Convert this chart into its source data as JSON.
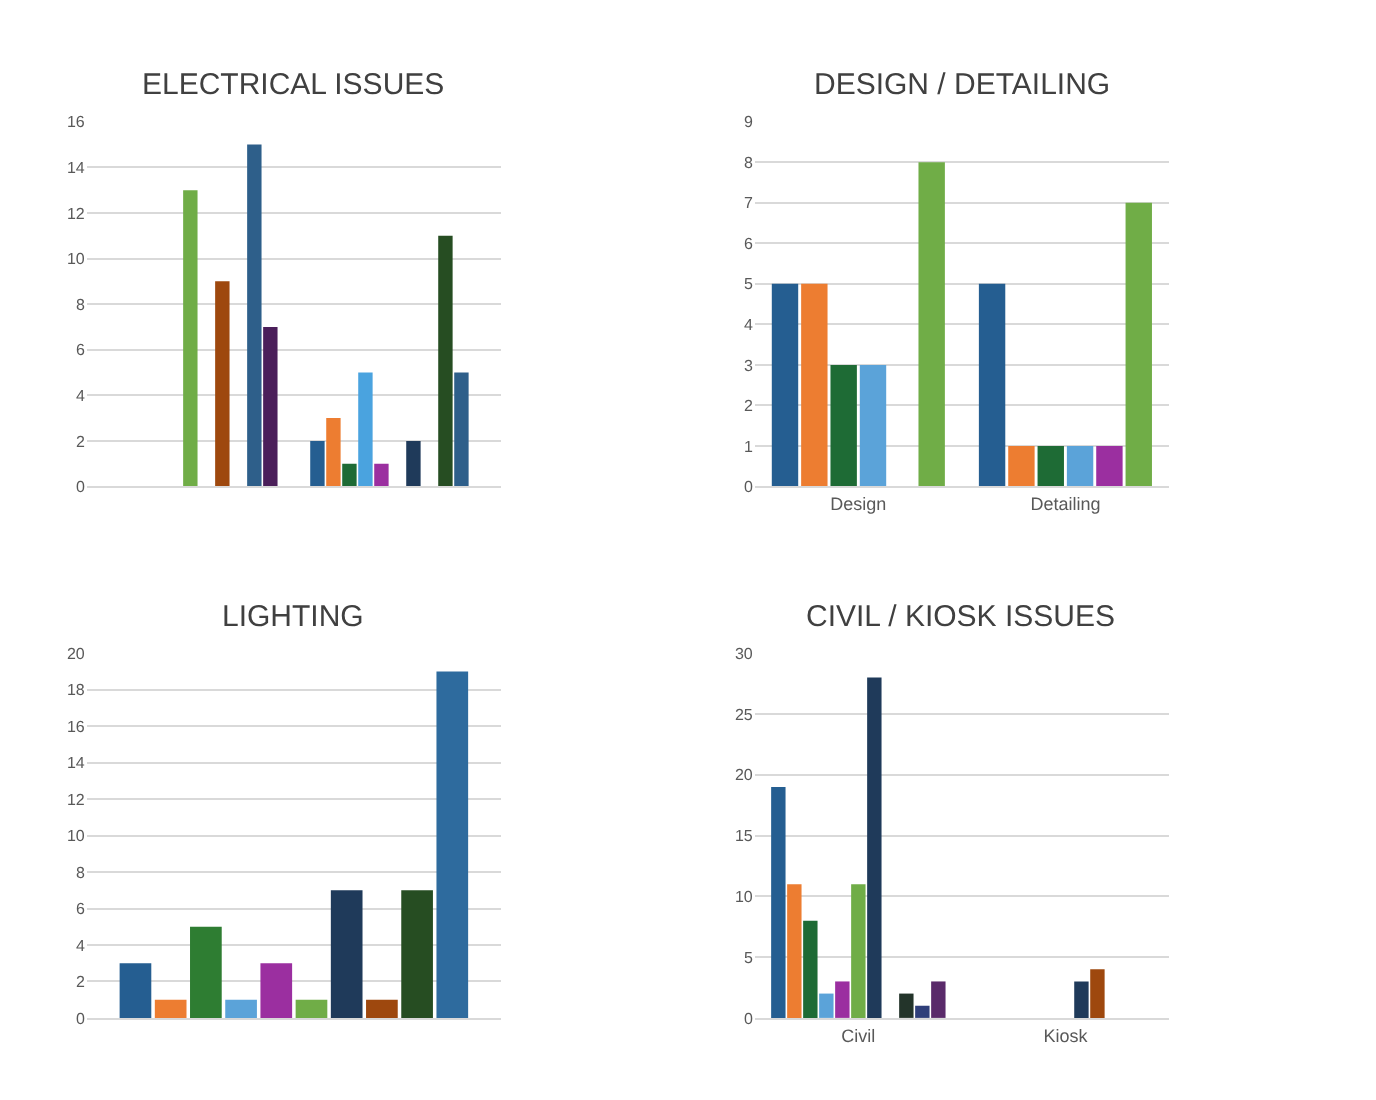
{
  "chart_data": [
    {
      "type": "bar",
      "title": "ELECTRICAL ISSUES",
      "categories": [
        null,
        null
      ],
      "ylim": [
        0,
        16
      ],
      "yticks": [
        0,
        2,
        4,
        6,
        8,
        10,
        12,
        14,
        16
      ],
      "grid": "y",
      "series": [
        {
          "color": "#255e91",
          "values": [
            null,
            2
          ]
        },
        {
          "color": "#ed7d31",
          "values": [
            null,
            3
          ]
        },
        {
          "color": "#1e6b35",
          "values": [
            null,
            1
          ]
        },
        {
          "color": "#4aa3df",
          "values": [
            null,
            5
          ]
        },
        {
          "color": "#9b2fa0",
          "values": [
            null,
            1
          ]
        },
        {
          "color": "#70ad47",
          "values": [
            13,
            null
          ]
        },
        {
          "color": "#1f3a5a",
          "values": [
            null,
            2
          ]
        },
        {
          "color": "#9e480e",
          "values": [
            9,
            null
          ]
        },
        {
          "color": "#264d22",
          "values": [
            null,
            11
          ]
        },
        {
          "color": "#2e5f8a",
          "values": [
            15,
            5
          ]
        },
        {
          "color": "#4b1f5a",
          "values": [
            7,
            null
          ]
        }
      ]
    },
    {
      "type": "bar",
      "title": "DESIGN / DETAILING",
      "categories": [
        "Design",
        "Detailing"
      ],
      "ylim": [
        0,
        9
      ],
      "yticks": [
        0,
        1,
        2,
        3,
        4,
        5,
        6,
        7,
        8,
        9
      ],
      "grid": "y",
      "series": [
        {
          "color": "#255e91",
          "values": [
            5,
            5
          ]
        },
        {
          "color": "#ed7d31",
          "values": [
            5,
            1
          ]
        },
        {
          "color": "#1e6b35",
          "values": [
            3,
            1
          ]
        },
        {
          "color": "#5ba3d9",
          "values": [
            3,
            1
          ]
        },
        {
          "color": "#9b2fa0",
          "values": [
            null,
            1
          ]
        },
        {
          "color": "#70ad47",
          "values": [
            8,
            7
          ]
        }
      ]
    },
    {
      "type": "bar",
      "title": "LIGHTING",
      "categories": [
        null
      ],
      "ylim": [
        0,
        20
      ],
      "yticks": [
        0,
        2,
        4,
        6,
        8,
        10,
        12,
        14,
        16,
        18,
        20
      ],
      "grid": "y",
      "series": [
        {
          "color": "#255e91",
          "values": [
            3
          ]
        },
        {
          "color": "#ed7d31",
          "values": [
            1
          ]
        },
        {
          "color": "#2e7d32",
          "values": [
            5
          ]
        },
        {
          "color": "#5ba3d9",
          "values": [
            1
          ]
        },
        {
          "color": "#9b2fa0",
          "values": [
            3
          ]
        },
        {
          "color": "#70ad47",
          "values": [
            1
          ]
        },
        {
          "color": "#1f3a5a",
          "values": [
            7
          ]
        },
        {
          "color": "#9e480e",
          "values": [
            1
          ]
        },
        {
          "color": "#264d22",
          "values": [
            7
          ]
        },
        {
          "color": "#2e6b9e",
          "values": [
            19
          ]
        }
      ]
    },
    {
      "type": "bar",
      "title": "CIVIL / KIOSK ISSUES",
      "categories": [
        "Civil",
        "Kiosk"
      ],
      "ylim": [
        0,
        30
      ],
      "yticks": [
        0,
        5,
        10,
        15,
        20,
        25,
        30
      ],
      "grid": "y",
      "series": [
        {
          "color": "#255e91",
          "values": [
            19,
            null
          ]
        },
        {
          "color": "#ed7d31",
          "values": [
            11,
            null
          ]
        },
        {
          "color": "#1e6b35",
          "values": [
            8,
            null
          ]
        },
        {
          "color": "#5ba3d9",
          "values": [
            2,
            null
          ]
        },
        {
          "color": "#9b2fa0",
          "values": [
            3,
            null
          ]
        },
        {
          "color": "#70ad47",
          "values": [
            11,
            null
          ]
        },
        {
          "color": "#1f3a5a",
          "values": [
            28,
            3
          ]
        },
        {
          "color": "#9e480e",
          "values": [
            null,
            4
          ]
        },
        {
          "color": "#23342a",
          "values": [
            2,
            null
          ]
        },
        {
          "color": "#2f3f7a",
          "values": [
            1,
            null
          ]
        },
        {
          "color": "#5a2a6a",
          "values": [
            3,
            null
          ]
        }
      ]
    }
  ]
}
